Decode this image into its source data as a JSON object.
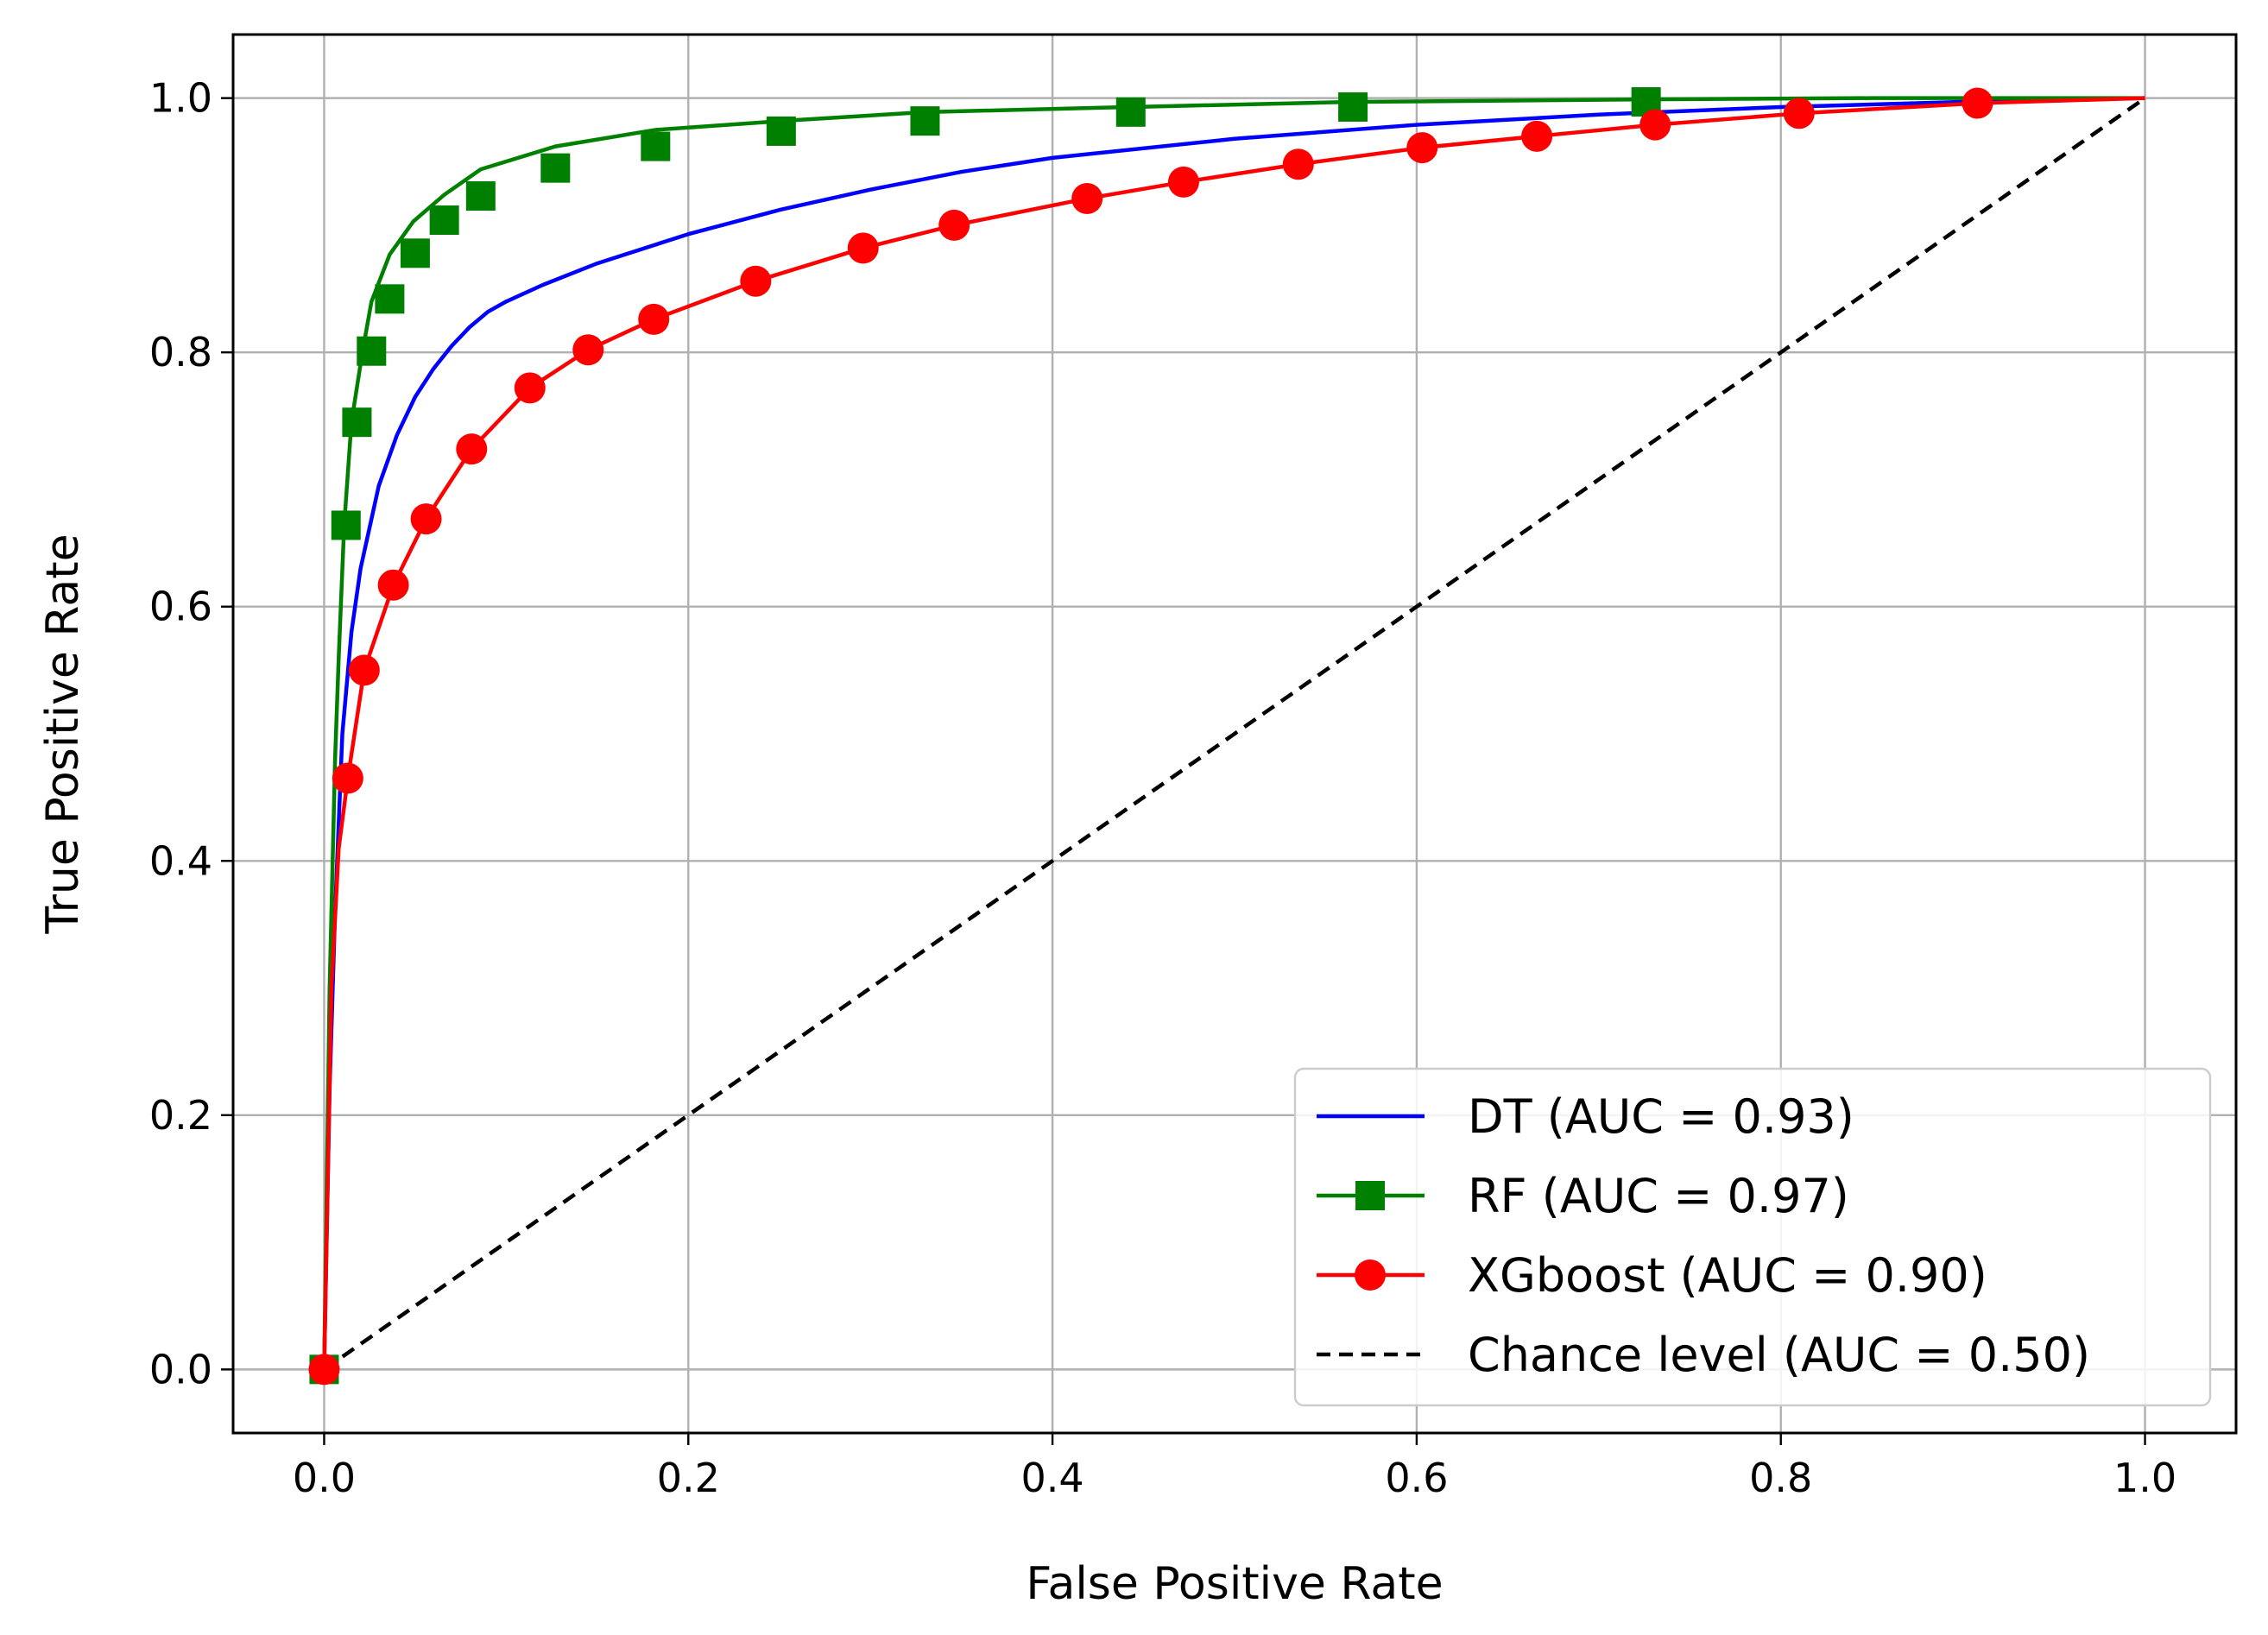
{
  "chart_data": {
    "type": "line",
    "title": "",
    "xlabel": "False Positive Rate",
    "ylabel": "True Positive Rate",
    "xlim": [
      -0.05,
      1.05
    ],
    "ylim": [
      -0.05,
      1.05
    ],
    "xticks": [
      0.0,
      0.2,
      0.4,
      0.6,
      0.8,
      1.0
    ],
    "yticks": [
      0.0,
      0.2,
      0.4,
      0.6,
      0.8,
      1.0
    ],
    "xtick_labels": [
      "0.0",
      "0.2",
      "0.4",
      "0.6",
      "0.8",
      "1.0"
    ],
    "ytick_labels": [
      "0.0",
      "0.2",
      "0.4",
      "0.6",
      "0.8",
      "1.0"
    ],
    "grid": true,
    "legend_position": "bottom-right",
    "series": [
      {
        "name": "DT (AUC = 0.93)",
        "color": "#0000ff",
        "marker": "none",
        "linestyle": "solid",
        "x": [
          0.0,
          0.003,
          0.006,
          0.01,
          0.015,
          0.02,
          0.03,
          0.04,
          0.05,
          0.06,
          0.07,
          0.08,
          0.09,
          0.1,
          0.12,
          0.15,
          0.2,
          0.25,
          0.3,
          0.35,
          0.4,
          0.5,
          0.6,
          0.7,
          0.8,
          0.9,
          1.0
        ],
        "y": [
          0.0,
          0.22,
          0.36,
          0.5,
          0.58,
          0.63,
          0.695,
          0.735,
          0.765,
          0.787,
          0.805,
          0.82,
          0.832,
          0.84,
          0.853,
          0.87,
          0.893,
          0.912,
          0.928,
          0.942,
          0.953,
          0.968,
          0.979,
          0.987,
          0.993,
          0.997,
          1.0
        ],
        "markers_x": [],
        "markers_y": []
      },
      {
        "name": "RF (AUC = 0.97)",
        "color": "#008000",
        "marker": "square",
        "linestyle": "solid",
        "x": [
          0.0,
          0.003,
          0.006,
          0.008,
          0.011,
          0.015,
          0.021,
          0.026,
          0.036,
          0.049,
          0.066,
          0.086,
          0.127,
          0.182,
          0.251,
          0.33,
          0.443,
          0.565,
          0.726,
          0.85,
          1.0
        ],
        "y": [
          0.0,
          0.3,
          0.48,
          0.56,
          0.664,
          0.745,
          0.8,
          0.84,
          0.877,
          0.903,
          0.924,
          0.944,
          0.962,
          0.975,
          0.982,
          0.989,
          0.993,
          0.997,
          0.999,
          1.0,
          1.0
        ],
        "markers_x": [
          0.0,
          0.012,
          0.018,
          0.026,
          0.036,
          0.05,
          0.066,
          0.086,
          0.127,
          0.182,
          0.251,
          0.33,
          0.443,
          0.565,
          0.726
        ],
        "markers_y": [
          0.0,
          0.664,
          0.745,
          0.801,
          0.842,
          0.878,
          0.904,
          0.923,
          0.945,
          0.962,
          0.974,
          0.982,
          0.989,
          0.993,
          0.997
        ]
      },
      {
        "name": "XGboost (AUC = 0.90)",
        "color": "#ff0000",
        "marker": "circle",
        "linestyle": "solid",
        "x": [
          0.0,
          0.004,
          0.008,
          0.013,
          0.022,
          0.038,
          0.056,
          0.081,
          0.113,
          0.145,
          0.181,
          0.237,
          0.296,
          0.346,
          0.419,
          0.472,
          0.535,
          0.603,
          0.666,
          0.731,
          0.81,
          0.908,
          1.0
        ],
        "y": [
          0.0,
          0.3,
          0.41,
          0.465,
          0.55,
          0.617,
          0.669,
          0.724,
          0.772,
          0.802,
          0.826,
          0.856,
          0.882,
          0.9,
          0.921,
          0.934,
          0.948,
          0.961,
          0.97,
          0.979,
          0.988,
          0.996,
          1.0
        ],
        "markers_x": [
          0.0,
          0.013,
          0.022,
          0.038,
          0.056,
          0.081,
          0.113,
          0.145,
          0.181,
          0.237,
          0.296,
          0.346,
          0.419,
          0.472,
          0.535,
          0.603,
          0.666,
          0.731,
          0.81,
          0.908
        ],
        "markers_y": [
          0.0,
          0.465,
          0.55,
          0.617,
          0.669,
          0.724,
          0.772,
          0.802,
          0.826,
          0.856,
          0.882,
          0.9,
          0.921,
          0.934,
          0.948,
          0.961,
          0.97,
          0.979,
          0.988,
          0.996
        ]
      },
      {
        "name": "Chance level (AUC = 0.50)",
        "color": "#000000",
        "marker": "none",
        "linestyle": "dashed",
        "x": [
          0.0,
          1.0
        ],
        "y": [
          0.0,
          1.0
        ],
        "markers_x": [],
        "markers_y": []
      }
    ]
  }
}
